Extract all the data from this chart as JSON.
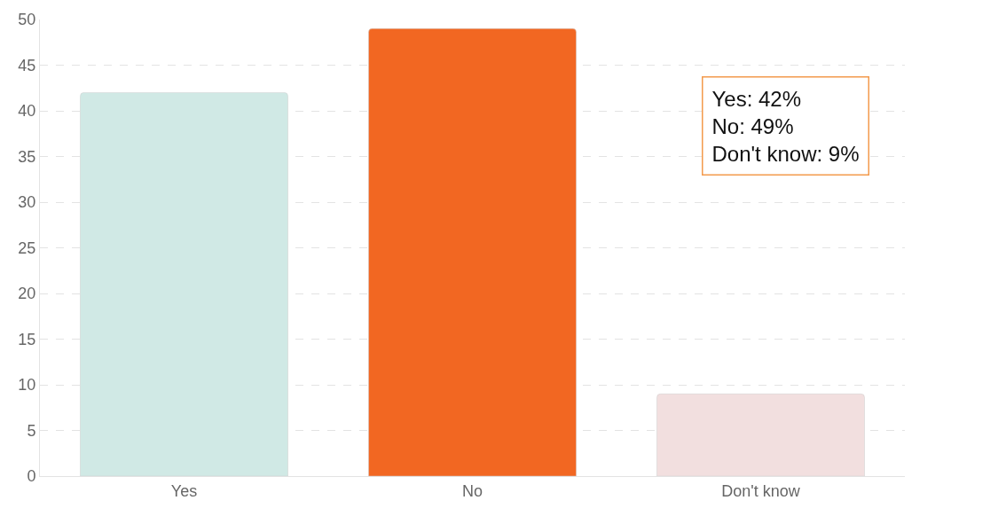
{
  "chart_data": {
    "type": "bar",
    "categories": [
      "Yes",
      "No",
      "Don't know"
    ],
    "values": [
      42,
      49,
      9
    ],
    "colors": [
      "#d0e9e5",
      "#f26722",
      "#f2dfdf"
    ],
    "ylim": [
      0,
      50
    ],
    "yticks": [
      0,
      5,
      10,
      15,
      20,
      25,
      30,
      35,
      40,
      45,
      50
    ],
    "grid": "y",
    "legend": false,
    "annotations": [
      "Yes: 42%",
      "No: 49%",
      "Don't know: 9%"
    ]
  }
}
